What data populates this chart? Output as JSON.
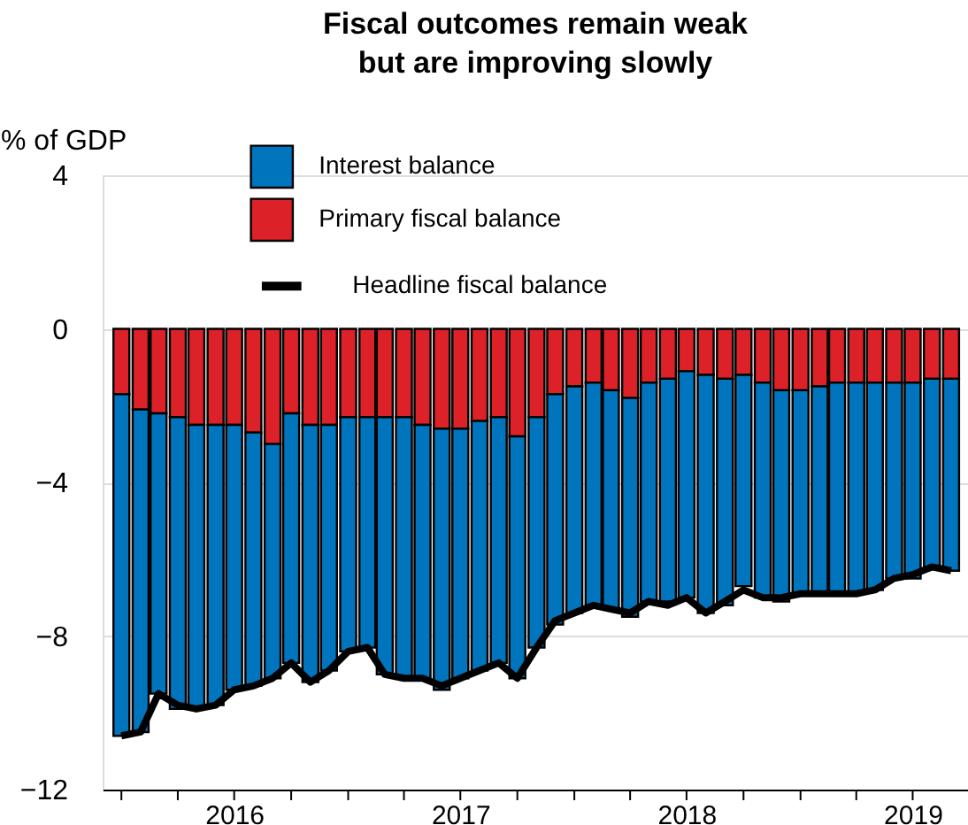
{
  "chart_data": {
    "type": "bar",
    "title": "Fiscal outcomes remain weak\nbut are improving slowly",
    "ylabel": "% of GDP",
    "x": [
      "2016-01",
      "2016-02",
      "2016-03",
      "2016-04",
      "2016-05",
      "2016-06",
      "2016-07",
      "2016-08",
      "2016-09",
      "2016-10",
      "2016-11",
      "2016-12",
      "2017-01",
      "2017-02",
      "2017-03",
      "2017-04",
      "2017-05",
      "2017-06",
      "2017-07",
      "2017-08",
      "2017-09",
      "2017-10",
      "2017-11",
      "2017-12",
      "2018-01",
      "2018-02",
      "2018-03",
      "2018-04",
      "2018-05",
      "2018-06",
      "2018-07",
      "2018-08",
      "2018-09",
      "2018-10",
      "2018-11",
      "2018-12",
      "2019-01",
      "2019-02",
      "2019-03",
      "2019-04",
      "2019-05",
      "2019-06",
      "2019-07",
      "2019-08",
      "2019-09"
    ],
    "stacked": true,
    "series": [
      {
        "name": "Primary fiscal balance",
        "color": "#dc2228",
        "values": [
          -1.7,
          -2.1,
          -2.2,
          -2.3,
          -2.5,
          -2.5,
          -2.5,
          -2.7,
          -3.0,
          -2.2,
          -2.5,
          -2.5,
          -2.3,
          -2.3,
          -2.3,
          -2.3,
          -2.5,
          -2.6,
          -2.6,
          -2.4,
          -2.3,
          -2.8,
          -2.3,
          -1.7,
          -1.5,
          -1.4,
          -1.6,
          -1.8,
          -1.4,
          -1.3,
          -1.1,
          -1.2,
          -1.3,
          -1.2,
          -1.4,
          -1.6,
          -1.6,
          -1.5,
          -1.4,
          -1.4,
          -1.4,
          -1.4,
          -1.4,
          -1.3,
          -1.3
        ]
      },
      {
        "name": "Interest balance",
        "color": "#0075be",
        "values": [
          -8.9,
          -8.4,
          -7.3,
          -7.6,
          -7.4,
          -7.3,
          -6.9,
          -6.6,
          -6.1,
          -6.5,
          -6.7,
          -6.4,
          -6.1,
          -6.0,
          -6.7,
          -6.8,
          -6.6,
          -6.8,
          -6.5,
          -6.5,
          -6.4,
          -6.3,
          -6.0,
          -6.0,
          -5.9,
          -5.8,
          -5.7,
          -5.7,
          -5.7,
          -5.8,
          -5.9,
          -6.2,
          -5.9,
          -5.5,
          -5.6,
          -5.5,
          -5.3,
          -5.4,
          -5.5,
          -5.5,
          -5.4,
          -5.1,
          -5.1,
          -4.9,
          -5.0
        ]
      },
      {
        "name": "Headline fiscal balance",
        "type": "line",
        "color": "#000000",
        "values": [
          -10.6,
          -10.5,
          -9.5,
          -9.8,
          -9.9,
          -9.8,
          -9.4,
          -9.3,
          -9.1,
          -8.7,
          -9.2,
          -8.9,
          -8.4,
          -8.3,
          -9.0,
          -9.1,
          -9.1,
          -9.3,
          -9.1,
          -8.9,
          -8.7,
          -9.1,
          -8.3,
          -7.6,
          -7.4,
          -7.2,
          -7.3,
          -7.4,
          -7.1,
          -7.2,
          -7.0,
          -7.4,
          -7.1,
          -6.8,
          -7.0,
          -7.0,
          -6.9,
          -6.9,
          -6.9,
          -6.9,
          -6.8,
          -6.5,
          -6.4,
          -6.2,
          -6.3
        ]
      }
    ],
    "ylim": [
      -12,
      4
    ],
    "yticks": [
      4,
      0,
      -4,
      -8,
      -12
    ],
    "xlim": [
      "2015-12-16",
      "2019-09-14"
    ],
    "xticks": [
      {
        "value": "2016-01-01",
        "label": null
      },
      {
        "value": "2016-04-01",
        "label": null
      },
      {
        "value": "2016-07-01",
        "label": "2016"
      },
      {
        "value": "2016-10-01",
        "label": null
      },
      {
        "value": "2017-01-01",
        "label": null
      },
      {
        "value": "2017-04-01",
        "label": null
      },
      {
        "value": "2017-07-01",
        "label": "2017"
      },
      {
        "value": "2017-10-01",
        "label": null
      },
      {
        "value": "2018-01-01",
        "label": null
      },
      {
        "value": "2018-04-01",
        "label": null
      },
      {
        "value": "2018-07-01",
        "label": "2018"
      },
      {
        "value": "2018-10-01",
        "label": null
      },
      {
        "value": "2019-01-01",
        "label": null
      },
      {
        "value": "2019-04-01",
        "label": null
      },
      {
        "value": "2019-07-01",
        "label": "2019"
      }
    ],
    "grid": "y",
    "legend": "top left",
    "line_style": "solid"
  }
}
